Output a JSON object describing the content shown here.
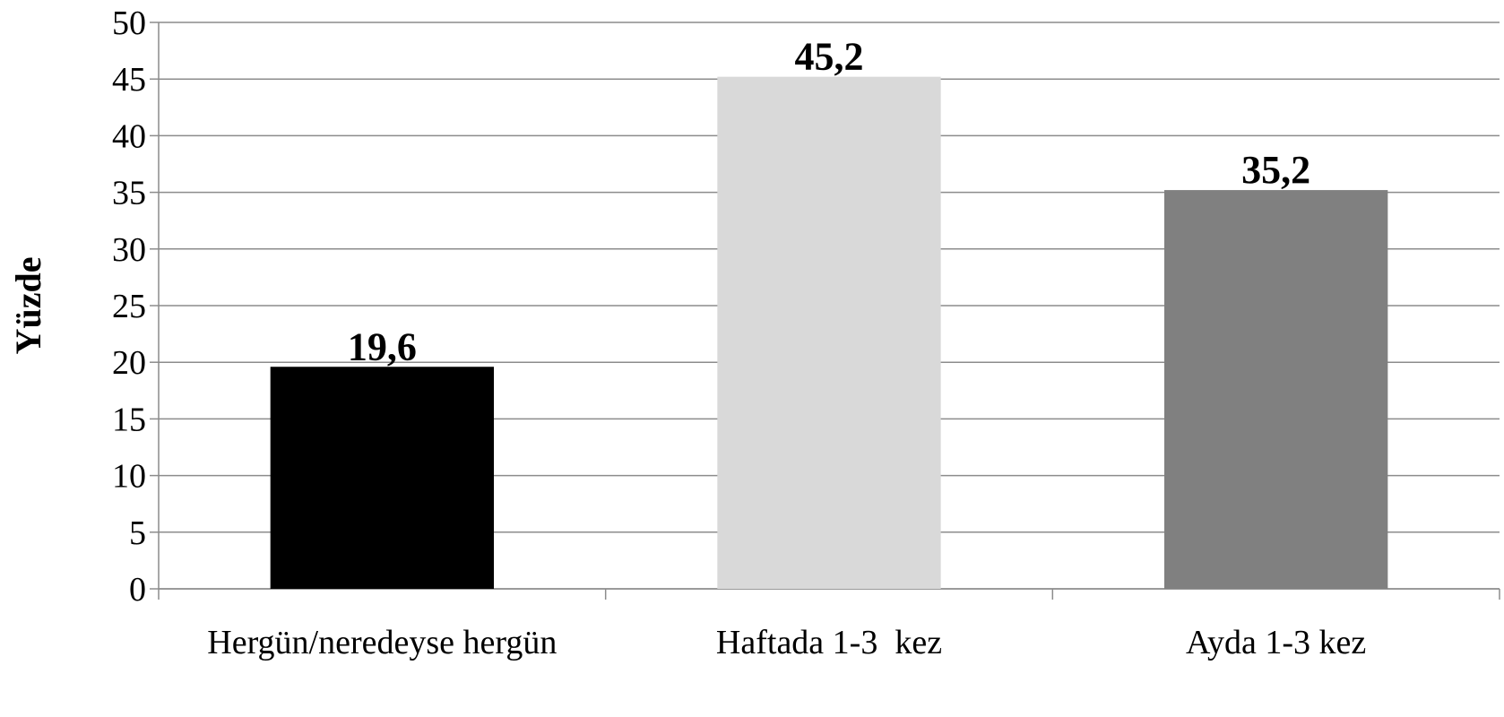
{
  "chart_data": {
    "type": "bar",
    "y_label": "Yüzde",
    "categories": [
      "Hergün/neredeyse hergün",
      "Haftada 1-3  kez",
      "Ayda 1-3 kez"
    ],
    "values": [
      19.6,
      45.2,
      35.2
    ],
    "value_labels": [
      "19,6",
      "45,2",
      "35,2"
    ],
    "colors": [
      "#000000",
      "#d9d9d9",
      "#808080"
    ],
    "ylim": [
      0,
      50
    ],
    "yticks": [
      0,
      5,
      10,
      15,
      20,
      25,
      30,
      35,
      40,
      45,
      50
    ],
    "grid": true
  }
}
